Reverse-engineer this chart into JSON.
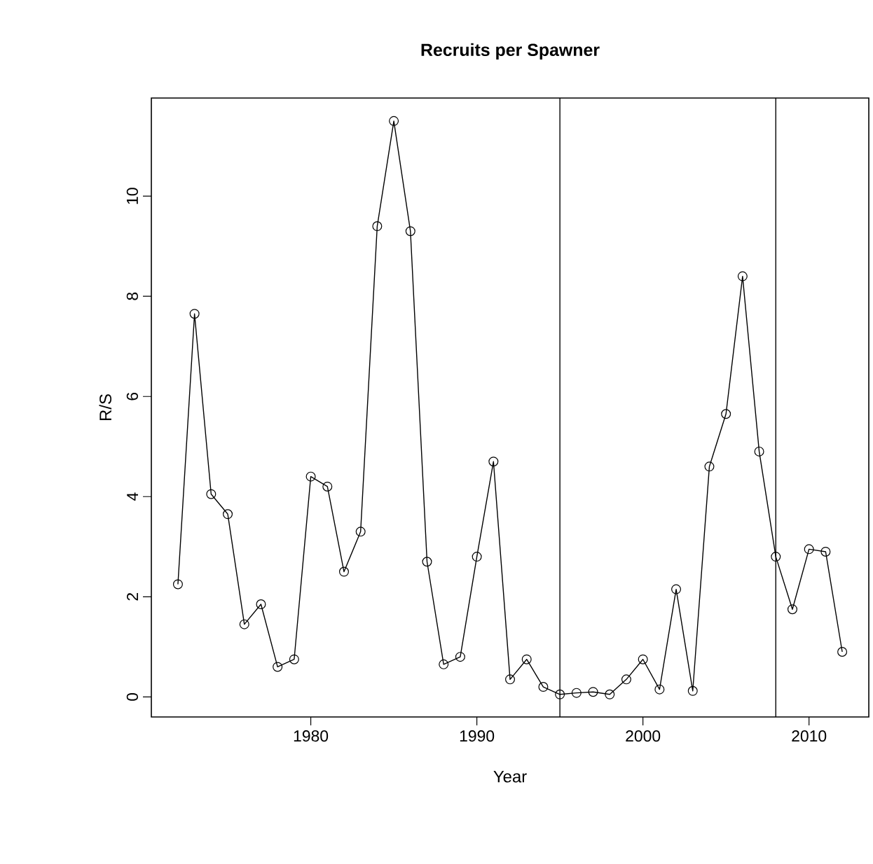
{
  "chart_data": {
    "type": "line",
    "title": "Recruits per Spawner",
    "xlabel": "Year",
    "ylabel": "R/S",
    "x": [
      1972,
      1973,
      1974,
      1975,
      1976,
      1977,
      1978,
      1979,
      1980,
      1981,
      1982,
      1983,
      1984,
      1985,
      1986,
      1987,
      1988,
      1989,
      1990,
      1991,
      1992,
      1993,
      1994,
      1995,
      1996,
      1997,
      1998,
      1999,
      2000,
      2001,
      2002,
      2003,
      2004,
      2005,
      2006,
      2007,
      2008,
      2009,
      2010,
      2011,
      2012
    ],
    "series": [
      {
        "color": "#000000",
        "values": [
          2.25,
          7.65,
          4.05,
          3.65,
          1.45,
          1.85,
          0.6,
          0.75,
          4.4,
          4.2,
          2.5,
          3.3,
          9.4,
          11.5,
          9.3,
          2.7,
          0.65,
          0.8,
          2.8,
          4.7,
          0.35,
          0.75,
          0.2,
          0.05,
          0.08,
          0.1,
          0.05,
          0.35,
          0.75,
          0.15,
          2.15,
          0.12,
          4.6,
          5.65,
          8.4,
          4.9,
          2.8,
          1.75,
          2.95,
          2.9,
          0.9
        ]
      }
    ],
    "xlim": [
      1970.4,
      2013.6
    ],
    "ylim": [
      -0.4,
      11.96
    ],
    "xticks": [
      1980,
      1990,
      2000,
      2010
    ],
    "yticks": [
      0,
      2,
      4,
      6,
      8,
      10
    ],
    "ref_lines": [
      {
        "axis": "x",
        "value": 1995,
        "color": "#000000"
      },
      {
        "axis": "x",
        "value": 2008,
        "color": "#000000"
      }
    ],
    "marker": "circle",
    "line_style": "solid"
  }
}
